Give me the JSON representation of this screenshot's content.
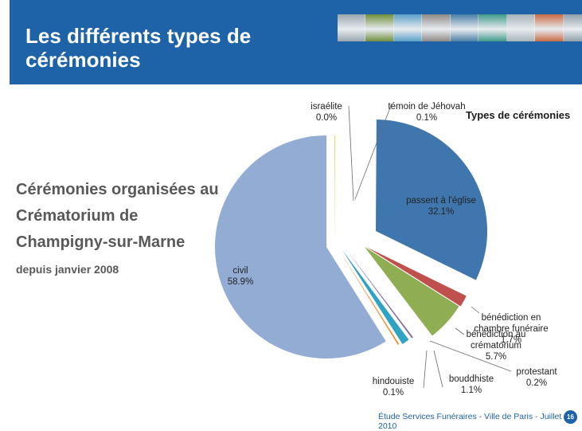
{
  "header": {
    "title_line1": "Les différents types de",
    "title_line2": "cérémonies",
    "photo_tints": [
      "#9aa6ad",
      "#6f8f3c",
      "#5aa0c8",
      "#8d8a86",
      "#4b7fa6",
      "#3f9a8a",
      "#a7b2b8",
      "#c86b46",
      "#8fa0aa"
    ]
  },
  "sidebar": {
    "line1": "Cérémonies organisées au",
    "line2": "Crématorium de",
    "line3": "Champigny-sur-Marne",
    "sub": "depuis janvier 2008"
  },
  "chart_data": {
    "type": "pie",
    "title": "Types de cérémonies",
    "slices": [
      {
        "label_lines": [
          "israélite"
        ],
        "value_text": "0.0%",
        "value": 0.0,
        "color": "#c9a0dc"
      },
      {
        "label_lines": [
          "témoin de Jéhovah"
        ],
        "value_text": "0.1%",
        "value": 0.1,
        "color": "#e8c84a"
      },
      {
        "label_lines": [
          "passent à l'église"
        ],
        "value_text": "32.1%",
        "value": 32.1,
        "color": "#3f76ae"
      },
      {
        "label_lines": [
          "bénédiction en",
          "chambre funéraire"
        ],
        "value_text": "1.7%",
        "value": 1.7,
        "color": "#c0504d"
      },
      {
        "label_lines": [
          "bénédiction au",
          "crématorium"
        ],
        "value_text": "5.7%",
        "value": 5.7,
        "color": "#8fad52"
      },
      {
        "label_lines": [
          "protestant"
        ],
        "value_text": "0.2%",
        "value": 0.2,
        "color": "#7f64a0"
      },
      {
        "label_lines": [
          "bouddhiste"
        ],
        "value_text": "1.1%",
        "value": 1.1,
        "color": "#2fa4c2"
      },
      {
        "label_lines": [
          "hindouiste"
        ],
        "value_text": "0.1%",
        "value": 0.1,
        "color": "#f0953a"
      },
      {
        "label_lines": [
          "civil"
        ],
        "value_text": "58.9%",
        "value": 58.9,
        "color": "#93acd4"
      }
    ]
  },
  "footer": {
    "text": "Étude Services Funéraires - Ville de Paris - Juillet 2010",
    "page": "16"
  }
}
